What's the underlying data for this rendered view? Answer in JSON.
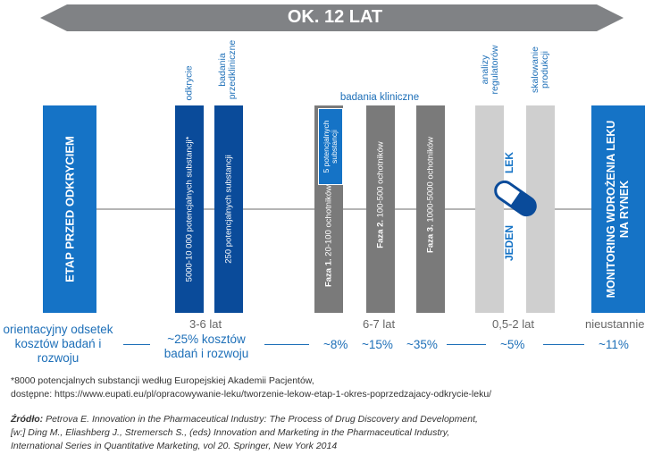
{
  "banner": {
    "text": "OK. 12 LAT",
    "color": "#808285"
  },
  "colors": {
    "blue": "#1573c6",
    "darkblue": "#0a4b9a",
    "gray": "#7a7a7a",
    "lightgray": "#cfcfcf",
    "accent": "#1d6fb8"
  },
  "columns": {
    "pre_discovery": "ETAP PRZED ODKRYCIEM",
    "discovery_top": "odkrycie",
    "discovery_bar": "5000-10 000 potencjalnych substancji*",
    "preclinical_top": "badania przedkliniczne",
    "preclinical_bar": "250 potencjalnych substancji",
    "clinical_header": "badania kliniczne",
    "phase1_box": "5 potencjalnych substancji",
    "phase1_bold": "Faza 1.",
    "phase1_text": "20-100 ochotników",
    "phase2_bold": "Faza 2.",
    "phase2_text": "100-500 ochotników",
    "phase3_bold": "Faza 3.",
    "phase3_text": "1000-5000 ochotników",
    "regulatory_top": "analizy regulatorów",
    "scaling_top": "skalowanie produkcji",
    "one_drug_a": "JEDEN",
    "one_drug_b": "LEK",
    "monitoring": "MONITORING WDROŻENIA LEKU NA RYNEK"
  },
  "durations": {
    "d1": "3-6 lat",
    "d2": "6-7 lat",
    "d3": "0,5-2 lat",
    "d4": "nieustannie"
  },
  "costs": {
    "intro": "orientacyjny odsetek kosztów badań i rozwoju",
    "c1": "~25% kosztów badań i rozwoju",
    "c2": "~8%",
    "c3": "~15%",
    "c4": "~35%",
    "c5": "~5%",
    "c6": "~11%"
  },
  "footnote": {
    "line1": "*8000 potencjalnych substancji według Europejskiej Akademii Pacjentów,",
    "line2": "dostępne: https://www.eupati.eu/pl/opracowywanie-leku/tworzenie-lekow-etap-1-okres-poprzedzajacy-odkrycie-leku/"
  },
  "source": {
    "label": "Źródło:",
    "line1": "Petrova E. Innovation in the Pharmaceutical Industry: The Process of Drug Discovery and Development,",
    "line2": "[w:] Ding M., Eliashberg J., Stremersch S., (eds) Innovation and Marketing in the Pharmaceutical Industry,",
    "line3": "International Series in Quantitative Marketing, vol 20. Springer, New York 2014"
  }
}
